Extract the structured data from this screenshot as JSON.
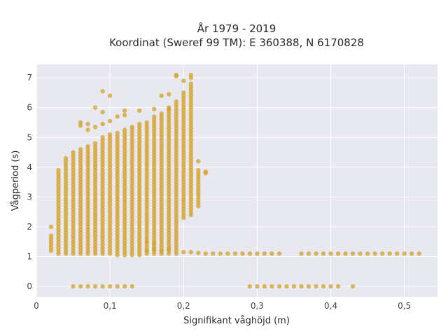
{
  "chart_data": {
    "type": "scatter",
    "title_line1": "År 1979 - 2019",
    "title_line2": "Koordinat (Sweref 99 TM): E 360388, N 6170828",
    "xlabel": "Signifikant våghöjd (m)",
    "ylabel": "Vågperiod (s)",
    "xlim": [
      0,
      0.545
    ],
    "ylim": [
      -0.35,
      7.45
    ],
    "x_ticks": [
      0,
      0.1,
      0.2,
      0.3,
      0.4,
      0.5
    ],
    "x_tick_labels": [
      "0",
      "0,1",
      "0,2",
      "0,3",
      "0,4",
      "0,5"
    ],
    "y_ticks": [
      0,
      1,
      2,
      3,
      4,
      5,
      6,
      7
    ],
    "y_tick_labels": [
      "0",
      "1",
      "2",
      "3",
      "4",
      "5",
      "6",
      "7"
    ],
    "grid": true,
    "point_color": "#d4a12a",
    "plot_background": "#e8e8f0",
    "columns": [
      {
        "x": 0.02,
        "ymin": 1.2,
        "ymax": 1.7
      },
      {
        "x": 0.03,
        "ymin": 1.1,
        "ymax": 3.9
      },
      {
        "x": 0.04,
        "ymin": 1.1,
        "ymax": 4.3
      },
      {
        "x": 0.05,
        "ymin": 1.1,
        "ymax": 4.5
      },
      {
        "x": 0.06,
        "ymin": 1.1,
        "ymax": 4.6
      },
      {
        "x": 0.07,
        "ymin": 1.1,
        "ymax": 4.7
      },
      {
        "x": 0.08,
        "ymin": 1.1,
        "ymax": 4.8
      },
      {
        "x": 0.09,
        "ymin": 1.1,
        "ymax": 5.0
      },
      {
        "x": 0.1,
        "ymin": 1.1,
        "ymax": 5.1
      },
      {
        "x": 0.11,
        "ymin": 1.05,
        "ymax": 5.2
      },
      {
        "x": 0.12,
        "ymin": 1.05,
        "ymax": 5.3
      },
      {
        "x": 0.13,
        "ymin": 1.05,
        "ymax": 5.4
      },
      {
        "x": 0.14,
        "ymin": 1.05,
        "ymax": 5.5
      },
      {
        "x": 0.15,
        "ymin": 1.1,
        "ymax": 5.5
      },
      {
        "x": 0.16,
        "ymin": 1.1,
        "ymax": 5.7
      },
      {
        "x": 0.17,
        "ymin": 1.1,
        "ymax": 5.8
      },
      {
        "x": 0.18,
        "ymin": 1.1,
        "ymax": 6.0
      },
      {
        "x": 0.19,
        "ymin": 1.1,
        "ymax": 6.2
      },
      {
        "x": 0.2,
        "ymin": 2.3,
        "ymax": 6.5
      },
      {
        "x": 0.21,
        "ymin": 2.4,
        "ymax": 6.8
      },
      {
        "x": 0.22,
        "ymin": 2.7,
        "ymax": 3.9
      }
    ],
    "points": [
      [
        0.02,
        2.0
      ],
      [
        0.06,
        5.4
      ],
      [
        0.06,
        5.5
      ],
      [
        0.07,
        5.25
      ],
      [
        0.07,
        5.45
      ],
      [
        0.08,
        6.0
      ],
      [
        0.08,
        5.35
      ],
      [
        0.09,
        6.55
      ],
      [
        0.09,
        5.85
      ],
      [
        0.09,
        5.45
      ],
      [
        0.1,
        6.4
      ],
      [
        0.1,
        5.55
      ],
      [
        0.11,
        5.7
      ],
      [
        0.12,
        5.9
      ],
      [
        0.12,
        5.75
      ],
      [
        0.14,
        5.9
      ],
      [
        0.16,
        5.95
      ],
      [
        0.17,
        6.4
      ],
      [
        0.18,
        6.45
      ],
      [
        0.18,
        5.95
      ],
      [
        0.19,
        7.1
      ],
      [
        0.19,
        7.05
      ],
      [
        0.21,
        7.1
      ],
      [
        0.21,
        7.0
      ],
      [
        0.2,
        6.9
      ],
      [
        0.22,
        4.2
      ],
      [
        0.23,
        3.85
      ],
      [
        0.23,
        3.8
      ],
      [
        0.15,
        1.2
      ],
      [
        0.15,
        1.5
      ],
      [
        0.16,
        1.45
      ],
      [
        0.16,
        1.25
      ],
      [
        0.17,
        1.2
      ],
      [
        0.18,
        1.25
      ],
      [
        0.2,
        1.15
      ],
      [
        0.21,
        1.15
      ],
      [
        0.22,
        1.12
      ],
      [
        0.05,
        0.0
      ],
      [
        0.06,
        0.0
      ],
      [
        0.07,
        0.0
      ],
      [
        0.08,
        0.0
      ],
      [
        0.09,
        0.0
      ],
      [
        0.1,
        0.0
      ],
      [
        0.11,
        0.0
      ],
      [
        0.12,
        0.0
      ],
      [
        0.13,
        0.0
      ],
      [
        0.29,
        0.0
      ],
      [
        0.3,
        0.0
      ],
      [
        0.31,
        0.0
      ],
      [
        0.32,
        0.0
      ],
      [
        0.33,
        0.0
      ],
      [
        0.34,
        0.0
      ],
      [
        0.35,
        0.0
      ],
      [
        0.36,
        0.0
      ],
      [
        0.37,
        0.0
      ],
      [
        0.38,
        0.0
      ],
      [
        0.39,
        0.0
      ],
      [
        0.4,
        0.0
      ],
      [
        0.41,
        0.0
      ],
      [
        0.43,
        0.0
      ]
    ],
    "tail": {
      "xmin": 0.23,
      "xmax": 0.52,
      "step": 0.01,
      "y": 1.1,
      "gap": [
        0.33,
        0.36
      ]
    }
  }
}
